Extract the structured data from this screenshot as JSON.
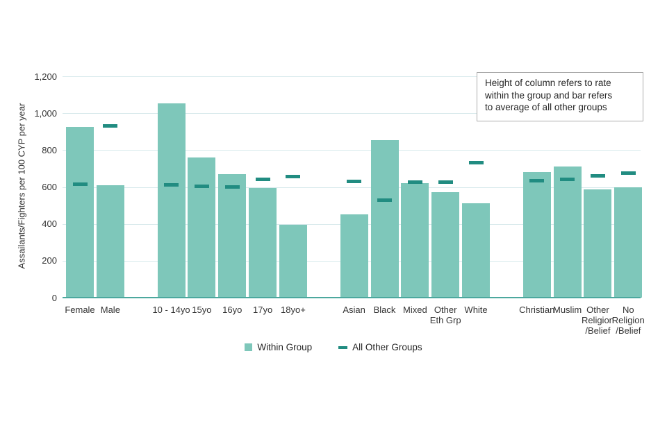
{
  "chart_data": {
    "type": "bar",
    "title": "",
    "xlabel": "",
    "ylabel": "Assailants/Fighters per 100 CYP per year",
    "ylim": [
      0,
      1200
    ],
    "grid": true,
    "legend_position": "bottom",
    "yticks": [
      {
        "value": 0,
        "label": "0"
      },
      {
        "value": 200,
        "label": "200"
      },
      {
        "value": 400,
        "label": "400"
      },
      {
        "value": 600,
        "label": "600"
      },
      {
        "value": 800,
        "label": "800"
      },
      {
        "value": 1000,
        "label": "1,000"
      },
      {
        "value": 1200,
        "label": "1,200"
      }
    ],
    "categories": [
      "Female",
      "Male",
      "10 - 14yo",
      "15yo",
      "16yo",
      "17yo",
      "18yo+",
      "Asian",
      "Black",
      "Mixed",
      "Other\nEth Grp",
      "White",
      "Christian",
      "Muslim",
      "Other\nReligion\n/Belief",
      "No\nReligion\n/Belief"
    ],
    "group_gaps_after": [
      1,
      6,
      11
    ],
    "series": [
      {
        "name": "Within Group",
        "mark": "column",
        "values": [
          925,
          610,
          1055,
          760,
          670,
          595,
          395,
          450,
          855,
          620,
          570,
          510,
          680,
          710,
          585,
          600
        ]
      },
      {
        "name": "All Other Groups",
        "mark": "dash",
        "values": [
          615,
          930,
          610,
          605,
          600,
          640,
          655,
          630,
          530,
          625,
          625,
          730,
          635,
          640,
          660,
          675
        ]
      }
    ]
  },
  "annotation": {
    "text": "Height of column refers to rate\nwithin the group and bar refers\nto average of all other groups"
  },
  "legend": {
    "items": [
      {
        "label": "Within Group",
        "swatch": "square"
      },
      {
        "label": "All Other Groups",
        "swatch": "dash"
      }
    ]
  },
  "colors": {
    "bar": "#7EC7BA",
    "dash": "#218C81",
    "axis_line": "#4CA89E",
    "gridline": "#D7E9EB",
    "annotation_border": "#ABABAB",
    "text": "#333333"
  }
}
